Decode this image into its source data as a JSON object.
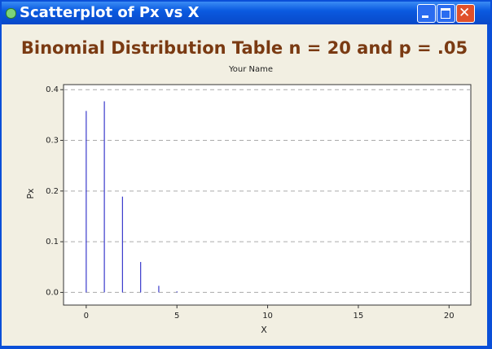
{
  "window": {
    "title": "Scatterplot of Px vs X"
  },
  "chart_data": {
    "type": "scatter",
    "title": "Binomial Distribution Table  n = 20 and p = .05",
    "subtitle": "Your Name",
    "x_label": "X",
    "y_label": "Px",
    "x": [
      0,
      1,
      2,
      3,
      4,
      5,
      6,
      7,
      8,
      9,
      10,
      11,
      12,
      13,
      14,
      15,
      16,
      17,
      18,
      19,
      20
    ],
    "series": [
      {
        "name": "Px",
        "color": "#3a3acc",
        "values": [
          0.358,
          0.377,
          0.189,
          0.06,
          0.013,
          0.002,
          0,
          0,
          0,
          0,
          0,
          0,
          0,
          0,
          0,
          0,
          0,
          0,
          0,
          0,
          0
        ]
      }
    ],
    "xlim": [
      -1.25,
      21.2
    ],
    "ylim": [
      -0.025,
      0.41
    ],
    "xticks": [
      0,
      5,
      10,
      15,
      20
    ],
    "yticks": [
      {
        "value": 0,
        "label": "0.0"
      },
      0.1,
      0.2,
      0.3,
      0.4
    ],
    "grid": true
  }
}
